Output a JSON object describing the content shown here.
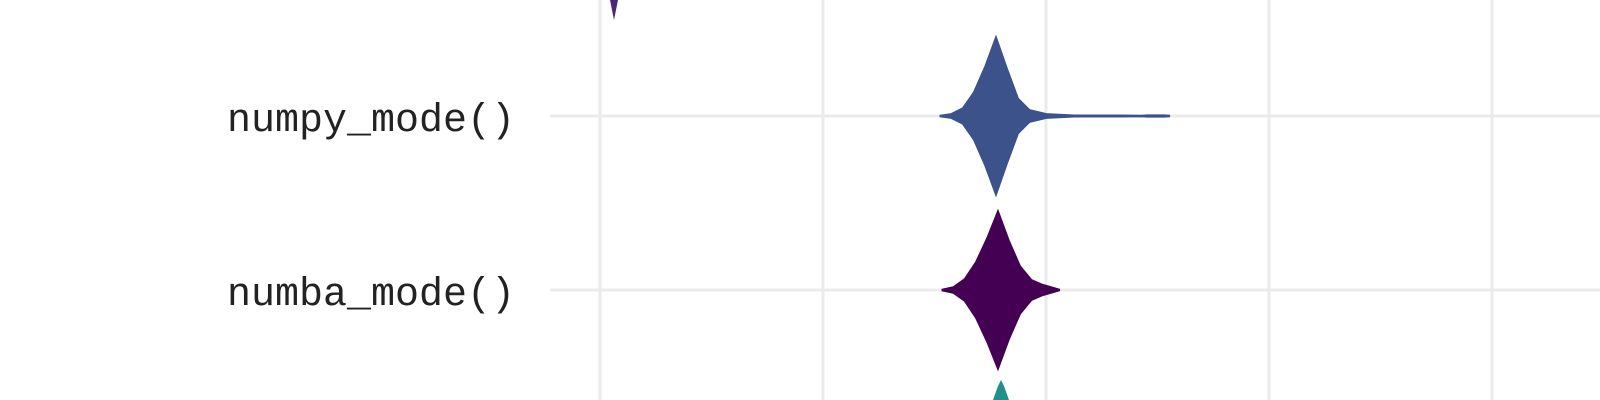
{
  "chart_data": {
    "type": "violin",
    "orientation": "horizontal",
    "grid": true,
    "legend": "none",
    "title": "",
    "xlabel": "",
    "ylabel": "",
    "categories": [
      "numpy_mode()",
      "numba_mode()"
    ],
    "series": [
      {
        "category": "numpy_mode()",
        "color": "#3b528b",
        "profile": [
          [
            -0.1,
            0.0
          ],
          [
            -0.08,
            0.03
          ],
          [
            -0.06,
            0.1
          ],
          [
            -0.04,
            0.3
          ],
          [
            -0.02,
            0.62
          ],
          [
            0.0,
            1.0
          ],
          [
            0.02,
            0.6
          ],
          [
            0.04,
            0.22
          ],
          [
            0.06,
            0.08
          ],
          [
            0.09,
            0.03
          ],
          [
            0.14,
            0.012
          ],
          [
            0.22,
            0.012
          ],
          [
            0.26,
            0.0
          ],
          [
            0.27,
            0.014
          ],
          [
            0.3,
            0.014
          ],
          [
            0.31,
            0.0
          ]
        ]
      },
      {
        "category": "numba_mode()",
        "color": "#440154",
        "profile": [
          [
            -0.1,
            0.0
          ],
          [
            -0.08,
            0.04
          ],
          [
            -0.06,
            0.14
          ],
          [
            -0.04,
            0.35
          ],
          [
            -0.02,
            0.65
          ],
          [
            0.0,
            1.0
          ],
          [
            0.02,
            0.62
          ],
          [
            0.04,
            0.3
          ],
          [
            0.06,
            0.13
          ],
          [
            0.08,
            0.07
          ],
          [
            0.1,
            0.03
          ],
          [
            0.11,
            0.0
          ]
        ]
      }
    ],
    "clipped_marks": [
      {
        "color": "#482878",
        "position": "top"
      },
      {
        "color": "#21908d",
        "position": "bottom"
      }
    ]
  }
}
